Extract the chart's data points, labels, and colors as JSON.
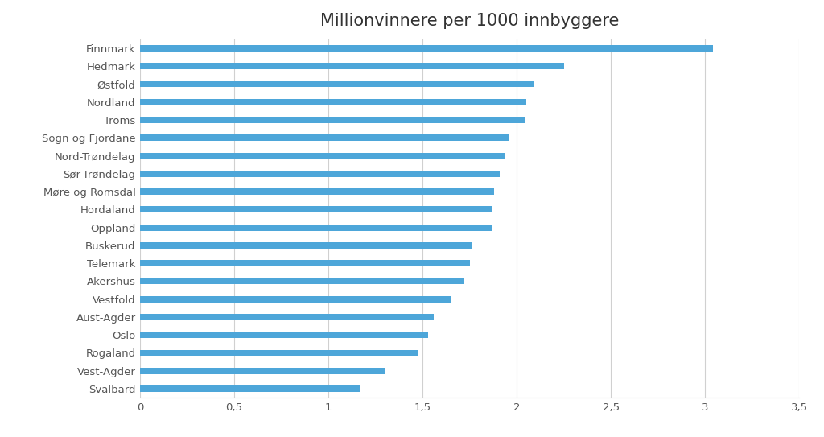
{
  "title": "Millionvinnere per 1000 innbyggere",
  "categories": [
    "Svalbard",
    "Vest-Agder",
    "Rogaland",
    "Oslo",
    "Aust-Agder",
    "Vestfold",
    "Akershus",
    "Telemark",
    "Buskerud",
    "Oppland",
    "Hordaland",
    "Møre og Romsdal",
    "Sør-Trøndelag",
    "Nord-Trøndelag",
    "Sogn og Fjordane",
    "Troms",
    "Nordland",
    "Østfold",
    "Hedmark",
    "Finnmark"
  ],
  "values": [
    1.17,
    1.3,
    1.48,
    1.53,
    1.56,
    1.65,
    1.72,
    1.75,
    1.76,
    1.87,
    1.87,
    1.88,
    1.91,
    1.94,
    1.96,
    2.04,
    2.05,
    2.09,
    2.25,
    3.04
  ],
  "bar_color": "#4da6d9",
  "xlim": [
    0,
    3.5
  ],
  "xticks": [
    0,
    0.5,
    1.0,
    1.5,
    2.0,
    2.5,
    3.0,
    3.5
  ],
  "xtick_labels": [
    "0",
    "0,5",
    "1",
    "1,5",
    "2",
    "2,5",
    "3",
    "3,5"
  ],
  "background_color": "#ffffff",
  "grid_color": "#d0d0d0",
  "title_fontsize": 15,
  "label_fontsize": 9.5,
  "tick_fontsize": 9.5,
  "bar_height": 0.35
}
